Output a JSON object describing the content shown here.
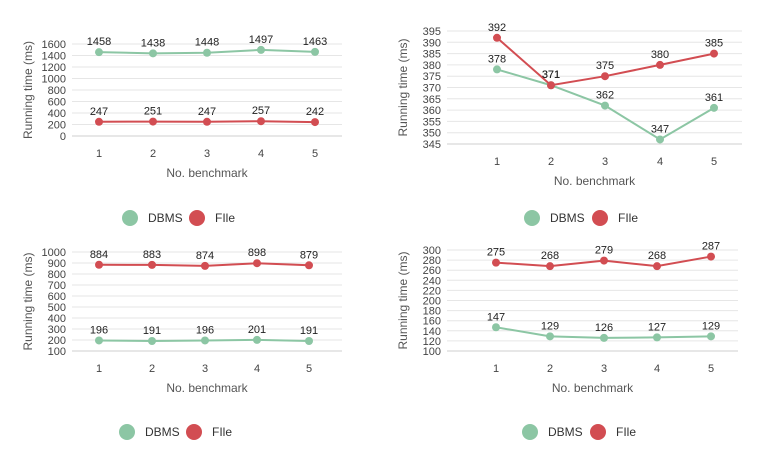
{
  "colors": {
    "dbms": "#8cc6a4",
    "file": "#d24d52",
    "grid": "#e6e6e6"
  },
  "legend": {
    "dbms": "DBMS",
    "file": "FIle"
  },
  "chart_data": [
    {
      "type": "line",
      "xlabel": "No. benchmark",
      "ylabel": "Running time (ms)",
      "categories": [
        "1",
        "2",
        "3",
        "4",
        "5"
      ],
      "yticks": [
        0,
        200,
        400,
        600,
        800,
        1000,
        1200,
        1400,
        1600
      ],
      "ylim": [
        0,
        1600
      ],
      "grid": true,
      "legend_position": "bottom",
      "series": [
        {
          "name": "DBMS",
          "values": [
            1458,
            1438,
            1448,
            1497,
            1463
          ]
        },
        {
          "name": "FIle",
          "values": [
            247,
            251,
            247,
            257,
            242
          ]
        }
      ]
    },
    {
      "type": "line",
      "xlabel": "No. benchmark",
      "ylabel": "Running time (ms)",
      "categories": [
        "1",
        "2",
        "3",
        "4",
        "5"
      ],
      "yticks": [
        345,
        350,
        355,
        360,
        365,
        370,
        375,
        380,
        385,
        390,
        395
      ],
      "ylim": [
        345,
        395
      ],
      "grid": true,
      "legend_position": "bottom",
      "series": [
        {
          "name": "DBMS",
          "values": [
            378,
            371,
            362,
            347,
            361
          ]
        },
        {
          "name": "FIle",
          "values": [
            392,
            371,
            375,
            380,
            385
          ]
        }
      ]
    },
    {
      "type": "line",
      "xlabel": "No. benchmark",
      "ylabel": "Running time (ms)",
      "categories": [
        "1",
        "2",
        "3",
        "4",
        "5"
      ],
      "yticks": [
        100,
        200,
        300,
        400,
        500,
        600,
        700,
        800,
        900,
        1000
      ],
      "ylim": [
        100,
        1000
      ],
      "grid": true,
      "legend_position": "bottom",
      "series": [
        {
          "name": "DBMS",
          "values": [
            196,
            191,
            196,
            201,
            191
          ]
        },
        {
          "name": "FIle",
          "values": [
            884,
            883,
            874,
            898,
            879
          ]
        }
      ]
    },
    {
      "type": "line",
      "xlabel": "No. benchmark",
      "ylabel": "Running time (ms)",
      "categories": [
        "1",
        "2",
        "3",
        "4",
        "5"
      ],
      "yticks": [
        100,
        120,
        140,
        160,
        180,
        200,
        220,
        240,
        260,
        280,
        300
      ],
      "ylim": [
        100,
        300
      ],
      "grid": true,
      "legend_position": "bottom",
      "series": [
        {
          "name": "DBMS",
          "values": [
            147,
            129,
            126,
            127,
            129
          ]
        },
        {
          "name": "FIle",
          "values": [
            275,
            268,
            279,
            268,
            287
          ]
        }
      ]
    }
  ]
}
